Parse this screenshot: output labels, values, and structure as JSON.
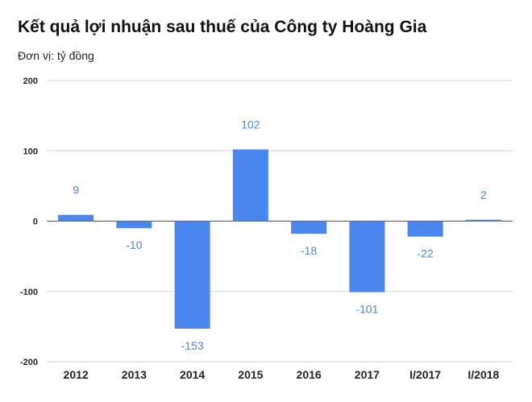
{
  "chart_data": {
    "type": "bar",
    "title": "Kết quả lợi nhuận sau thuế của Công ty Hoàng Gia",
    "subtitle": "Đơn vị: tỷ đồng",
    "categories": [
      "2012",
      "2013",
      "2014",
      "2015",
      "2016",
      "2017",
      "I/2017",
      "I/2018"
    ],
    "values": [
      9,
      -10,
      -153,
      102,
      -18,
      -101,
      -22,
      2
    ],
    "data_labels": [
      "9",
      "-10",
      "-153",
      "102",
      "-18",
      "-101",
      "-22",
      "2"
    ],
    "yticks": [
      200,
      100,
      0,
      -100,
      -200
    ],
    "ytick_labels": [
      "200",
      "100",
      "0",
      "-100",
      "-200"
    ],
    "ylim": [
      -200,
      200
    ],
    "grid": true,
    "legend": "none",
    "colors": {
      "bar": "#4a86f0",
      "label": "#4a86f0",
      "grid": "#d6d6d6",
      "zero_line": "#555555"
    }
  }
}
